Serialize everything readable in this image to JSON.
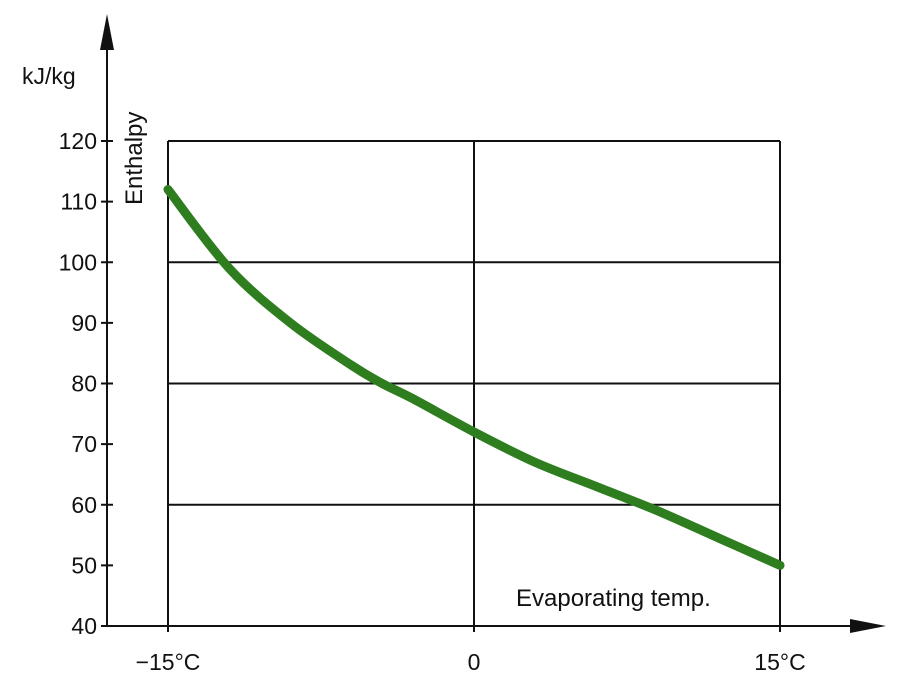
{
  "chart_data": {
    "type": "line",
    "title": "",
    "xlabel": "Evaporating temp.",
    "ylabel": "Enthalpy",
    "yunit": "kJ/kg",
    "xlim": [
      -15,
      15
    ],
    "ylim": [
      40,
      120
    ],
    "grid": true,
    "x_ticks": [
      {
        "value": -15,
        "label": "−15°C"
      },
      {
        "value": 0,
        "label": "0"
      },
      {
        "value": 15,
        "label": "15°C"
      }
    ],
    "y_ticks": [
      {
        "value": 40,
        "label": "40"
      },
      {
        "value": 50,
        "label": "50"
      },
      {
        "value": 60,
        "label": "60"
      },
      {
        "value": 70,
        "label": "70"
      },
      {
        "value": 80,
        "label": "80"
      },
      {
        "value": 90,
        "label": "90"
      },
      {
        "value": 100,
        "label": "100"
      },
      {
        "value": 110,
        "label": "110"
      },
      {
        "value": 120,
        "label": "120"
      }
    ],
    "series": [
      {
        "color": "#2e7d1f",
        "x": [
          -15,
          -12,
          -9,
          -6,
          -4.5,
          -3,
          0,
          3,
          6,
          9,
          12,
          15
        ],
        "y": [
          112,
          99,
          90,
          83,
          80,
          77.5,
          72,
          67,
          63,
          59,
          54.5,
          50
        ]
      }
    ]
  }
}
